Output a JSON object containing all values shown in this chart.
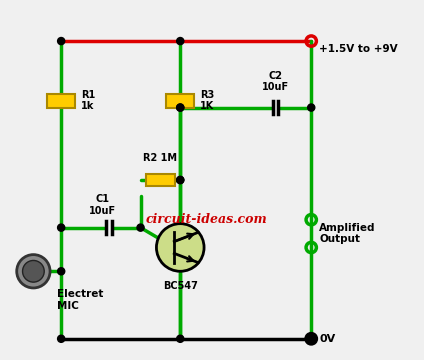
{
  "bg_color": "#f0f0f0",
  "wire_green": "#00aa00",
  "wire_red": "#dd0000",
  "wire_black": "#000000",
  "resistor_fill": "#ffcc00",
  "resistor_edge": "#aa8800",
  "transistor_fill": "#ccdd88",
  "transistor_edge": "#000000",
  "cap_color": "#ffffff",
  "node_color": "#000000",
  "output_node_color": "#00aa00",
  "vcc_node_color": "#dd0000",
  "gnd_node_color": "#000000",
  "title_color": "#cc0000",
  "title": "circuit-ideas.com",
  "label_R1": "R1\n1k",
  "label_R2": "R2 1M",
  "label_R3": "R3\n1K",
  "label_C1": "C1\n10uF",
  "label_C2": "C2\n10uF",
  "label_transistor": "BC547",
  "label_mic": "Electret\nMIC",
  "label_vcc": "+1.5V to +9V",
  "label_out": "Amplified\nOutput",
  "label_gnd": "0V"
}
